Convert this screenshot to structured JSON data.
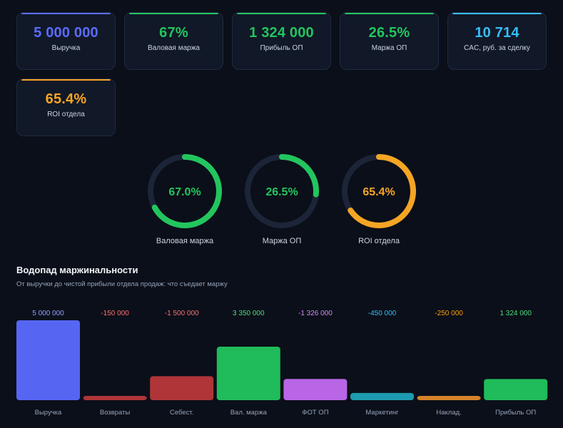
{
  "kpis": [
    {
      "value": "5 000 000",
      "label": "Выручка",
      "color": "#5b6cff"
    },
    {
      "value": "67%",
      "label": "Валовая маржа",
      "color": "#22c55e"
    },
    {
      "value": "1 324 000",
      "label": "Прибыль ОП",
      "color": "#22c55e"
    },
    {
      "value": "26.5%",
      "label": "Маржа ОП",
      "color": "#22c55e"
    },
    {
      "value": "10 714",
      "label": "CAC, руб. за сделку",
      "color": "#38bdf8"
    },
    {
      "value": "65.4%",
      "label": "ROI отдела",
      "color": "#f5a524"
    }
  ],
  "rings": [
    {
      "pct_text": "67.0%",
      "fraction": 0.67,
      "label": "Валовая маржа",
      "color": "#22c55e"
    },
    {
      "pct_text": "26.5%",
      "fraction": 0.265,
      "label": "Маржа ОП",
      "color": "#22c55e"
    },
    {
      "pct_text": "65.4%",
      "fraction": 0.654,
      "label": "ROI отдела",
      "color": "#f5a524"
    }
  ],
  "waterfall": {
    "title": "Водопад маржинальности",
    "subtitle": "От выручки до чистой прибыли отдела продаж: что съедает маржу"
  },
  "chart_data": {
    "type": "bar",
    "categories": [
      "Выручка",
      "Возвраты",
      "Себест.",
      "Вал. маржа",
      "ФОТ ОП",
      "Маркетинг",
      "Наклад.",
      "Прибыль ОП"
    ],
    "values": [
      5000000,
      -150000,
      -1500000,
      3350000,
      -1326000,
      -450000,
      -250000,
      1324000
    ],
    "value_labels": [
      "5 000 000",
      "-150 000",
      "-1 500 000",
      "3 350 000",
      "-1 326 000",
      "-450 000",
      "-250 000",
      "1 324 000"
    ],
    "colors": [
      "#5b6cff",
      "#ef4444",
      "#ef4444",
      "#22c55e",
      "#c26bf0",
      "#1fa3b8",
      "#e08a2a",
      "#22c55e"
    ],
    "label_colors": [
      "#8ea0ff",
      "#f87171",
      "#f87171",
      "#4ade80",
      "#d08cf5",
      "#38bdf8",
      "#f59e0b",
      "#4ade80"
    ],
    "title": "Водопад маржинальности"
  }
}
